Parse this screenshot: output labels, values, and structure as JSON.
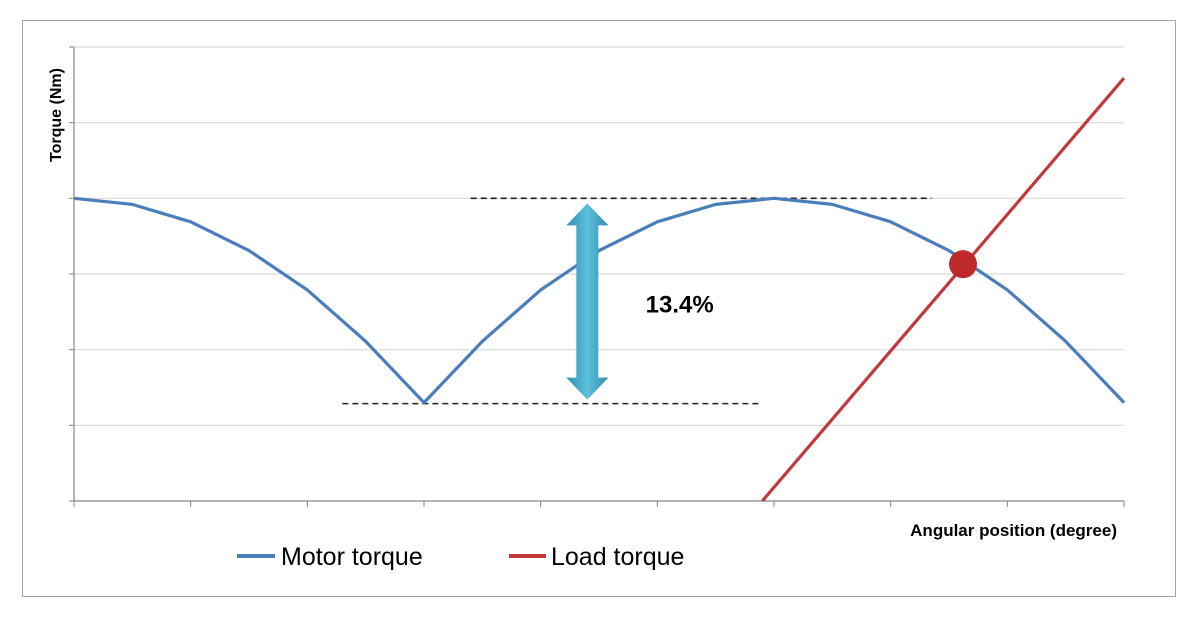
{
  "chart_data": {
    "type": "line",
    "title": "",
    "xlabel": "Angular position (degree)",
    "ylabel": "Torque (Nm)",
    "xlim": [
      0,
      9
    ],
    "ylim": [
      0,
      6
    ],
    "grid": "horizontal",
    "tick_labels_shown": false,
    "legend_placement": "bottom",
    "series": [
      {
        "name": "Motor torque",
        "color": "#4a7ebb",
        "x": [
          0,
          0.5,
          1,
          1.5,
          2,
          2.5,
          3,
          3.5,
          4,
          4.5,
          5,
          5.5,
          6,
          6.5,
          7,
          7.5,
          8,
          8.5,
          9
        ],
        "y": [
          4.0,
          3.92,
          3.69,
          3.31,
          2.79,
          2.11,
          1.3,
          2.11,
          2.79,
          3.31,
          3.69,
          3.92,
          4.0,
          3.92,
          3.69,
          3.31,
          2.79,
          2.11,
          1.3
        ]
      },
      {
        "name": "Load torque",
        "color": "#c0393b",
        "x": [
          5.9,
          9
        ],
        "y": [
          0,
          5.59
        ]
      }
    ],
    "annotations": {
      "ripple_label": "13.4%",
      "ripple_max": 4.0,
      "ripple_min": 1.3,
      "upper_dash_x": [
        3.4,
        7.35
      ],
      "lower_dash_x": [
        2.3,
        5.9
      ],
      "arrow_x": 4.4,
      "label_x": 4.9,
      "label_y": 2.6,
      "operating_point": {
        "x": 7.62,
        "y": 3.13,
        "color": "#c0292b"
      },
      "arrow_color": "#3fa3c4"
    }
  }
}
